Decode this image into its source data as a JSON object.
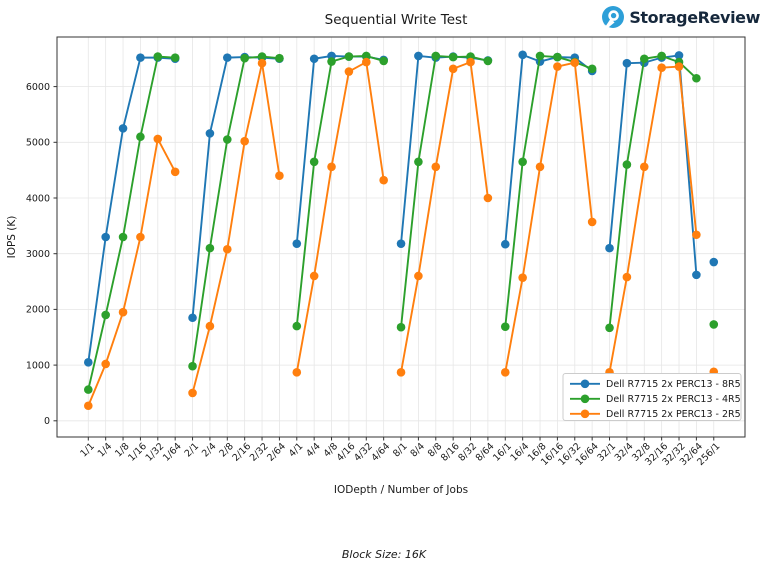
{
  "logo": {
    "text": "StorageReview",
    "icon_color": "#2d9fd8",
    "text_color": "#16283c"
  },
  "footer": {
    "caption": "Block Size: 16K"
  },
  "chart_data": {
    "type": "line",
    "title": "Sequential Write Test",
    "xlabel": "IODepth / Number of Jobs",
    "ylabel": "IOPS (K)",
    "ylim": [
      -290,
      6890
    ],
    "yticks": [
      0,
      1000,
      2000,
      3000,
      4000,
      5000,
      6000
    ],
    "grid": true,
    "legend_position": "lower right",
    "categories": [
      "1/1",
      "1/4",
      "1/8",
      "1/16",
      "1/32",
      "1/64",
      "2/1",
      "2/4",
      "2/8",
      "2/16",
      "2/32",
      "2/64",
      "4/1",
      "4/4",
      "4/8",
      "4/16",
      "4/32",
      "4/64",
      "8/1",
      "8/4",
      "8/8",
      "8/16",
      "8/32",
      "8/64",
      "16/1",
      "16/4",
      "16/8",
      "16/16",
      "16/32",
      "16/64",
      "32/1",
      "32/4",
      "32/8",
      "32/16",
      "32/32",
      "32/64",
      "256/1"
    ],
    "segments": [
      [
        0,
        5
      ],
      [
        6,
        11
      ],
      [
        12,
        17
      ],
      [
        18,
        23
      ],
      [
        24,
        29
      ],
      [
        30,
        35
      ],
      [
        36,
        36
      ]
    ],
    "series": [
      {
        "name": "Dell R7715 2x PERC13 - 8R5",
        "color": "#1f77b4",
        "values": [
          1050,
          3300,
          5250,
          6520,
          6520,
          6500,
          1850,
          5160,
          6520,
          6530,
          6520,
          6500,
          3180,
          6500,
          6550,
          6540,
          6540,
          6480,
          3180,
          6550,
          6520,
          6540,
          6520,
          6470,
          3170,
          6570,
          6450,
          6530,
          6520,
          6280,
          3100,
          6420,
          6430,
          6520,
          6560,
          2620,
          2850
        ]
      },
      {
        "name": "Dell R7715 2x PERC13 - 4R5",
        "color": "#2ca02c",
        "values": [
          560,
          1900,
          3300,
          5100,
          6540,
          6520,
          980,
          3100,
          5050,
          6510,
          6540,
          6510,
          1700,
          4650,
          6450,
          6540,
          6550,
          6460,
          1680,
          4650,
          6550,
          6530,
          6540,
          6460,
          1690,
          4650,
          6550,
          6530,
          6440,
          6320,
          1670,
          4600,
          6500,
          6550,
          6440,
          6150,
          1730
        ]
      },
      {
        "name": "Dell R7715 2x PERC13 - 2R5",
        "color": "#ff7f0e",
        "values": [
          270,
          1020,
          1950,
          3300,
          5060,
          4470,
          500,
          1700,
          3080,
          5020,
          6420,
          4400,
          870,
          2600,
          4560,
          6270,
          6440,
          4320,
          870,
          2600,
          4560,
          6320,
          6440,
          4000,
          870,
          2570,
          4560,
          6360,
          6430,
          3570,
          870,
          2580,
          4560,
          6340,
          6360,
          3340,
          880
        ]
      }
    ]
  }
}
